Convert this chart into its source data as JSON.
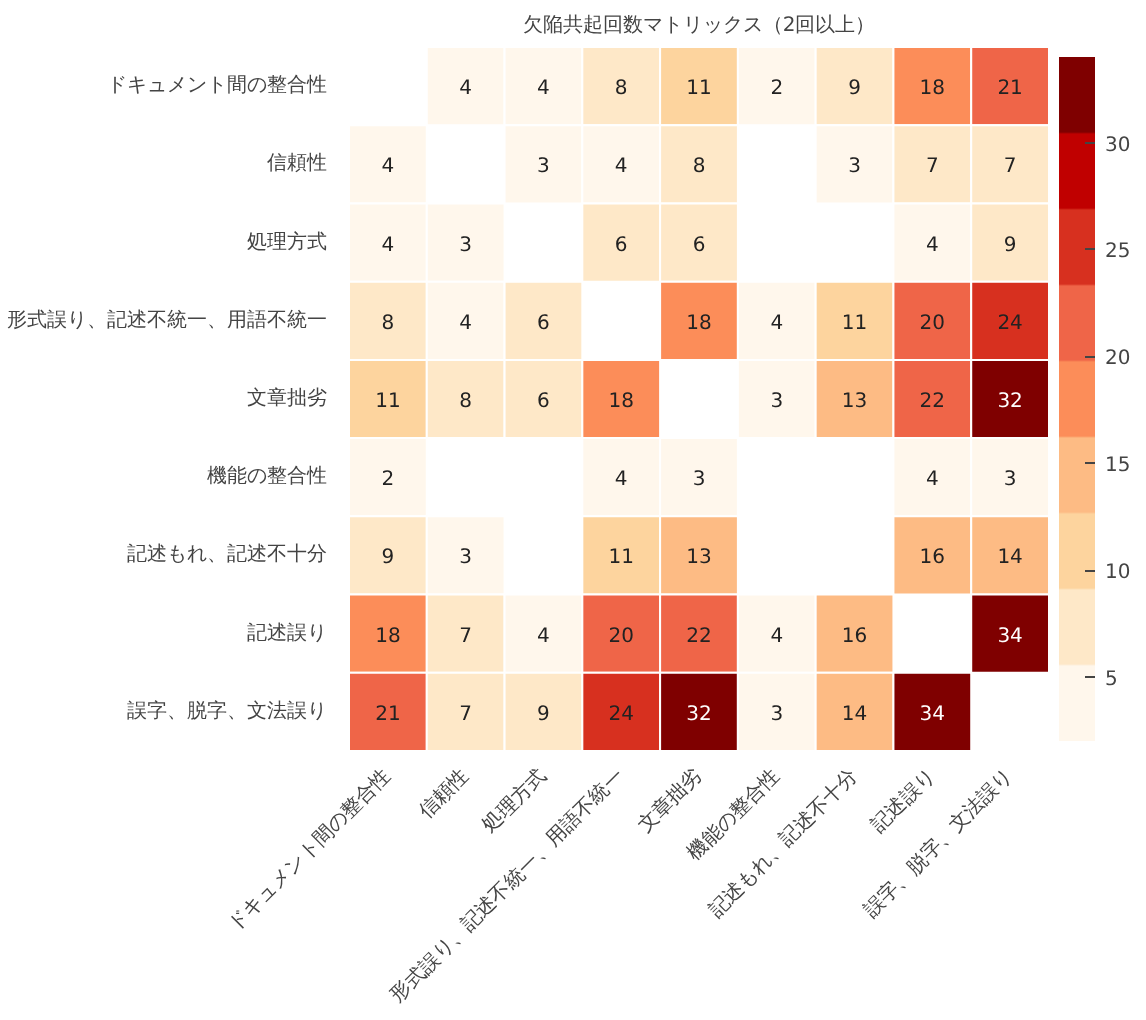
{
  "chart_data": {
    "type": "heatmap",
    "title": "欠陥共起回数マトリックス（2回以上）",
    "categories": [
      "ドキュメント間の整合性",
      "信頼性",
      "処理方式",
      "形式誤り、記述不統一、用語不統一",
      "文章拙劣",
      "機能の整合性",
      "記述もれ、記述不十分",
      "記述誤り",
      "誤字、脱字、文法誤り"
    ],
    "y_categories": [
      "ドキュメント間の整合性",
      "信頼性",
      "処理方式",
      "形式誤り、記述不統一、用語不統一",
      "文章拙劣",
      "機能の整合性",
      "記述もれ、記述不十分",
      "記述誤り",
      "誤字、脱字、文法誤り"
    ],
    "cells": [
      [
        null,
        4,
        4,
        8,
        11,
        2,
        9,
        18,
        21
      ],
      [
        4,
        null,
        3,
        4,
        8,
        null,
        3,
        7,
        7
      ],
      [
        4,
        3,
        null,
        6,
        6,
        null,
        null,
        4,
        9
      ],
      [
        8,
        4,
        6,
        null,
        18,
        4,
        11,
        20,
        24
      ],
      [
        11,
        8,
        6,
        18,
        null,
        3,
        13,
        22,
        32
      ],
      [
        2,
        null,
        null,
        4,
        3,
        null,
        null,
        4,
        3
      ],
      [
        9,
        3,
        null,
        11,
        13,
        null,
        null,
        16,
        14
      ],
      [
        18,
        7,
        4,
        20,
        22,
        4,
        16,
        null,
        34
      ],
      [
        21,
        7,
        9,
        24,
        32,
        3,
        14,
        34,
        null
      ]
    ],
    "clim": [
      2,
      34
    ],
    "cticks": [
      5,
      10,
      15,
      20,
      25,
      30
    ],
    "data_labels": true,
    "grid": false
  }
}
